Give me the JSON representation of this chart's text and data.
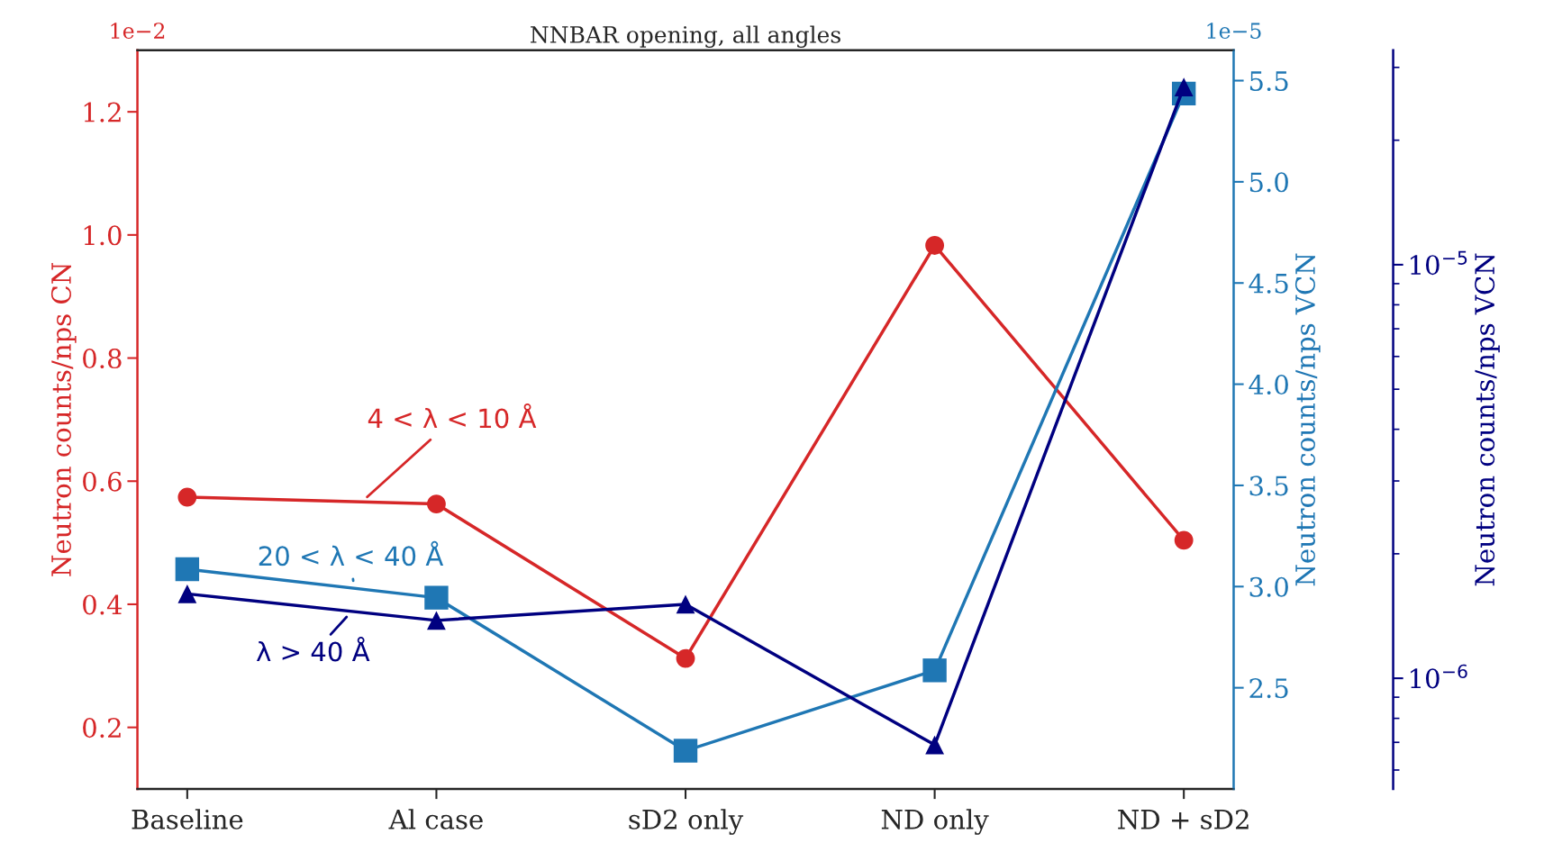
{
  "chart_data": {
    "type": "line",
    "title": "NNBAR opening, all angles",
    "categories": [
      "Baseline",
      "Al case",
      "sD2 only",
      "ND only",
      "ND + sD2"
    ],
    "ylabel": "Neutron counts/nps CN",
    "y2label": "Neutron counts/nps VCN",
    "y3label": "Neutron counts/nps VCN",
    "ylim": [
      0.1,
      1.3
    ],
    "yticks": [
      0.2,
      0.4,
      0.6,
      0.8,
      {
        "value": 1.0,
        "label": "1.0"
      },
      1.2
    ],
    "y2lim": [
      2.0,
      5.65
    ],
    "y2ticks": [
      2.5,
      {
        "value": 3.0,
        "label": "3.0"
      },
      3.5,
      {
        "value": 4.0,
        "label": "4.0"
      },
      4.5,
      {
        "value": 5.0,
        "label": "5.0"
      },
      5.5
    ],
    "log": "y3",
    "y3lim": [
      5.4e-07,
      3.3e-05
    ],
    "y3ticks": [
      {
        "value": 1e-06,
        "label": "10$^{−6}$"
      },
      {
        "value": 1e-05,
        "label": "10$^{−5}$"
      }
    ],
    "annotations": [
      "1e−2",
      "1e−5"
    ],
    "grid": false,
    "line_style": "solid",
    "series": [
      {
        "name": "4 < λ < 10 Å",
        "color": "#d62728",
        "axis": "y",
        "marker": "circle",
        "values": [
          0.574,
          0.563,
          0.312,
          0.983,
          0.504
        ]
      },
      {
        "name": "20 < λ < 40 Å",
        "color": "#1f77b4",
        "axis": "y2",
        "marker": "square",
        "values": [
          3.086,
          2.945,
          2.189,
          2.586,
          5.436
        ]
      },
      {
        "name": "λ > 40 Å",
        "color": "#000080",
        "axis": "y3",
        "marker": "triangle",
        "values": [
          1.6e-06,
          1.38e-06,
          1.51e-06,
          6.9e-07,
          2.69e-05
        ]
      }
    ]
  }
}
